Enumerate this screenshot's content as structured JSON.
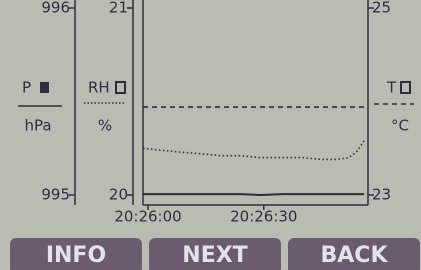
{
  "chart_data": {
    "type": "line",
    "x": [
      -1.3,
      3,
      8,
      14,
      19,
      24,
      29,
      35,
      40,
      45,
      49,
      52,
      54,
      56
    ],
    "xlim": [
      -1.3,
      57
    ],
    "xticks": [
      {
        "value": 0,
        "label": "20:26:00"
      },
      {
        "value": 30,
        "label": "20:26:30"
      }
    ],
    "ylim": [
      995,
      996
    ],
    "yticks": [
      995,
      996
    ],
    "ylabel": "P",
    "yunit": "hPa",
    "y2lim": [
      20,
      21
    ],
    "y2ticks": [
      20,
      21
    ],
    "y2label": "RH",
    "y2unit": "%",
    "y3lim": [
      23,
      25
    ],
    "y3ticks": [
      23,
      25
    ],
    "y3label": "T",
    "y3unit": "°C",
    "series": [
      {
        "axis": "y",
        "style": "dashed",
        "color": "#2f2b46",
        "values": [
          995.47,
          995.47,
          995.47,
          995.47,
          995.47,
          995.47,
          995.47,
          995.47,
          995.47,
          995.47,
          995.47,
          995.47,
          995.47,
          995.47
        ]
      },
      {
        "axis": "y2",
        "style": "dotted",
        "color": "#2f2b46",
        "values": [
          20.25,
          20.24,
          20.23,
          20.22,
          20.21,
          20.21,
          20.2,
          20.2,
          20.2,
          20.19,
          20.19,
          20.2,
          20.23,
          20.29
        ]
      },
      {
        "axis": "y3",
        "style": "solid",
        "color": "#2f2b46",
        "values": [
          23.01,
          23.01,
          23.01,
          23.01,
          23.01,
          23.01,
          23.0,
          23.01,
          23.01,
          23.01,
          23.01,
          23.01,
          23.01,
          23.01
        ]
      }
    ]
  },
  "buttons": [
    "INFO",
    "NEXT",
    "BACK"
  ]
}
